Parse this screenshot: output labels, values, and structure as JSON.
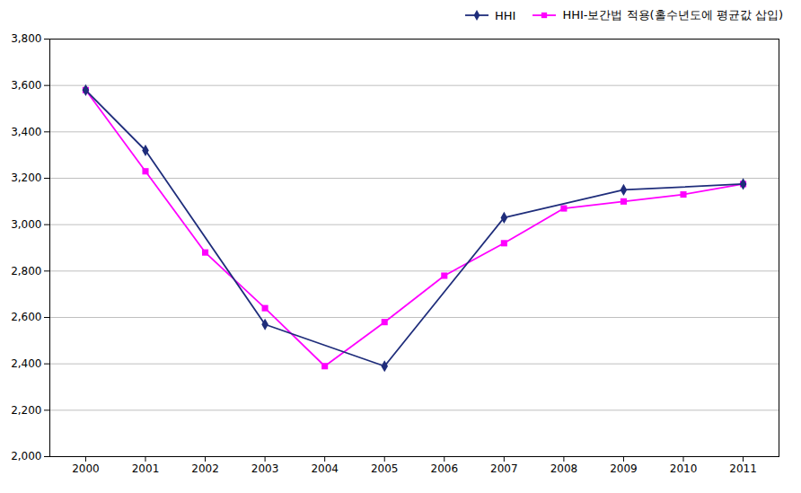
{
  "chart_data": {
    "type": "line",
    "series": [
      {
        "name": "HHI",
        "color": "#1F2D7B",
        "marker": "diamond",
        "x": [
          2000,
          2001,
          2003,
          2005,
          2007,
          2009,
          2011
        ],
        "values": [
          3580,
          3320,
          2570,
          2390,
          3030,
          3150,
          3175
        ]
      },
      {
        "name": "HHI-보간법 적용(홀수년도에 평균값 삽입)",
        "color": "#FF00FF",
        "marker": "square",
        "x": [
          2000,
          2001,
          2002,
          2003,
          2004,
          2005,
          2006,
          2007,
          2008,
          2009,
          2010,
          2011
        ],
        "values": [
          3580,
          3230,
          2880,
          2640,
          2390,
          2580,
          2780,
          2920,
          3070,
          3100,
          3130,
          3175
        ]
      }
    ],
    "xlim": [
      1999.4,
      2011.6
    ],
    "xticks": [
      2000,
      2001,
      2002,
      2003,
      2004,
      2005,
      2006,
      2007,
      2008,
      2009,
      2010,
      2011
    ],
    "ylim": [
      2000,
      3800
    ],
    "yticks": [
      {
        "value": 2000,
        "label": "2,000"
      },
      {
        "value": 2200,
        "label": "2,200"
      },
      {
        "value": 2400,
        "label": "2,400"
      },
      {
        "value": 2600,
        "label": "2,600"
      },
      {
        "value": 2800,
        "label": "2,800"
      },
      {
        "value": 3000,
        "label": "3,000"
      },
      {
        "value": 3200,
        "label": "3,200"
      },
      {
        "value": 3400,
        "label": "3,400"
      },
      {
        "value": 3600,
        "label": "3,600"
      },
      {
        "value": 3800,
        "label": "3,800"
      }
    ],
    "grid": "y",
    "legend": "upper right"
  }
}
